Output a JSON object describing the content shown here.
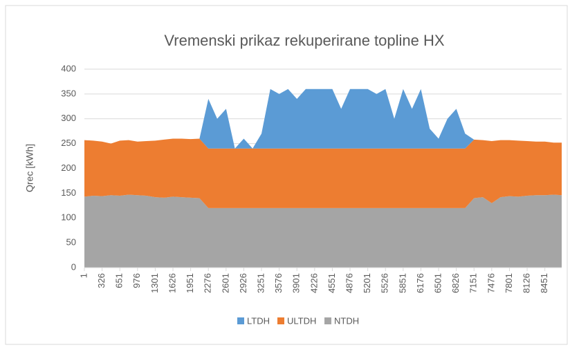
{
  "chart_data": {
    "type": "stacked_area",
    "title": "Vremenski prikaz rekuperirane topline HX",
    "y_label": "Qrec [kWh]",
    "x": [
      1,
      163,
      326,
      488,
      651,
      813,
      976,
      1138,
      1301,
      1463,
      1626,
      1788,
      1951,
      2113,
      2276,
      2438,
      2601,
      2763,
      2926,
      3088,
      3251,
      3413,
      3576,
      3738,
      3901,
      4063,
      4226,
      4388,
      4551,
      4713,
      4876,
      5038,
      5201,
      5363,
      5526,
      5688,
      5851,
      6013,
      6176,
      6338,
      6501,
      6663,
      6826,
      6988,
      7151,
      7313,
      7476,
      7638,
      7801,
      7963,
      8126,
      8288,
      8451,
      8613,
      8760
    ],
    "series": [
      {
        "name": "LTDH",
        "color": "#5b9bd5",
        "values": [
          0,
          0,
          0,
          0,
          0,
          0,
          0,
          0,
          0,
          0,
          0,
          0,
          0,
          0,
          100,
          60,
          80,
          0,
          20,
          0,
          30,
          120,
          110,
          120,
          100,
          120,
          120,
          120,
          120,
          80,
          120,
          120,
          120,
          110,
          120,
          60,
          120,
          80,
          120,
          40,
          20,
          60,
          80,
          30,
          0,
          0,
          0,
          0,
          0,
          0,
          0,
          0,
          0,
          0,
          0
        ]
      },
      {
        "name": "ULTDH",
        "color": "#ed7d31",
        "values": [
          114,
          111,
          110,
          104,
          111,
          110,
          108,
          110,
          114,
          117,
          117,
          118,
          118,
          120,
          120,
          120,
          120,
          120,
          120,
          120,
          120,
          120,
          120,
          120,
          120,
          120,
          120,
          120,
          120,
          120,
          120,
          120,
          120,
          120,
          120,
          120,
          120,
          120,
          120,
          120,
          120,
          120,
          120,
          120,
          118,
          115,
          125,
          115,
          113,
          113,
          110,
          108,
          108,
          105,
          106
        ]
      },
      {
        "name": "NTDH",
        "color": "#a5a5a5",
        "values": [
          143,
          145,
          144,
          146,
          145,
          147,
          146,
          145,
          142,
          141,
          143,
          142,
          141,
          140,
          120,
          120,
          120,
          120,
          120,
          120,
          120,
          120,
          120,
          120,
          120,
          120,
          120,
          120,
          120,
          120,
          120,
          120,
          120,
          120,
          120,
          120,
          120,
          120,
          120,
          120,
          120,
          120,
          120,
          120,
          140,
          142,
          130,
          142,
          144,
          143,
          145,
          146,
          146,
          147,
          146
        ]
      }
    ],
    "xlim": [
      1,
      8760
    ],
    "xticks": [
      1,
      326,
      651,
      976,
      1301,
      1626,
      1951,
      2276,
      2601,
      2926,
      3251,
      3576,
      3901,
      4226,
      4551,
      4876,
      5201,
      5526,
      5851,
      6176,
      6501,
      6826,
      7151,
      7476,
      7801,
      8126,
      8451
    ],
    "ylim": [
      0,
      400
    ],
    "yticks": [
      0,
      50,
      100,
      150,
      200,
      250,
      300,
      350,
      400
    ],
    "grid": true,
    "legend": "bottom"
  }
}
